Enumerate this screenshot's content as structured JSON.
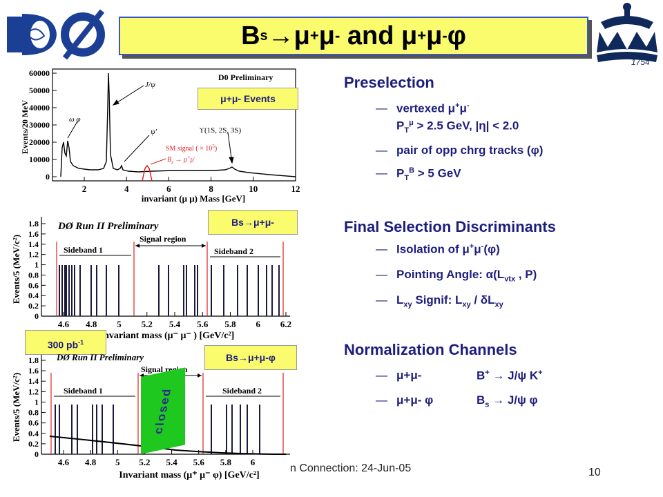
{
  "title": {
    "parts": [
      "B",
      "s",
      " → ",
      "μ",
      "+",
      "μ",
      "-",
      " and ",
      "μ",
      "+",
      "μ",
      "-",
      "φ"
    ]
  },
  "logo_left": {
    "text": "DØ"
  },
  "logo_right": {
    "year": "1754"
  },
  "preselection": {
    "heading": "Preselection",
    "items": [
      {
        "a": "vertexed μ",
        "a_sup": "+",
        "b": "μ",
        "b_sup": "-"
      },
      {
        "a": "P",
        "a_sub": "T",
        "a_sup": "μ",
        "b": " > 2.5 GeV, |η| < 2.0"
      },
      {
        "a": "pair of opp chrg tracks (φ)"
      },
      {
        "a": "P",
        "a_sub": "T",
        "a_sup": "B",
        "b": " > 5 GeV"
      }
    ]
  },
  "final_selection": {
    "heading": "Final Selection Discriminants",
    "items": [
      {
        "a": "Isolation of μ",
        "a_sup": "+",
        "b": "μ",
        "b_sup": "-",
        "c": "(φ)"
      },
      {
        "a": "Pointing Angle: α(L",
        "a_sub": "vtx",
        "b": " , P)"
      },
      {
        "a": "L",
        "a_sub": "xy",
        "b": " Signif: L",
        "b_sub": "xy",
        "c": " / δL",
        "c_sub": "xy"
      }
    ]
  },
  "normalization": {
    "heading": "Normalization Channels",
    "rows": [
      {
        "left": "μ+μ-",
        "right_a": "B",
        "right_sup": "+",
        "right_b": " → J/ψ K",
        "right_sup2": "+"
      },
      {
        "left": "μ+μ- φ",
        "right_a": "B",
        "right_sub": "s",
        "right_b": " → J/ψ  φ"
      }
    ]
  },
  "tags": {
    "events": "μ+μ- Events",
    "bs_mumu": "Bs→μ+μ-",
    "lumi": "300 pb",
    "lumi_sup": "-1",
    "bs_mumuphi": "Bs→μ+μ-φ",
    "closed": "closed"
  },
  "plot1": {
    "preliminary": "D0 Preliminary",
    "ylabel": "Events/20 MeV",
    "xlabel": "invariant (μ μ) Mass [GeV]",
    "yticks": [
      "0",
      "10000",
      "20000",
      "30000",
      "40000",
      "50000",
      "60000"
    ],
    "xticks": [
      "2",
      "4",
      "6",
      "8",
      "10",
      "12"
    ],
    "labels": {
      "jpsi": "J/ψ",
      "omega_phi": "ω φ",
      "psiprime": "ψ'",
      "upsilon": "ϒ(1S, 2S, 3S)",
      "sm_signal": "SM signal ( × 10",
      "sm_signal_sup": "5",
      "sm_signal_close": ")",
      "bs_label": "B",
      "bs_sub": "s",
      "bs_arrow": " → μ",
      "bs_tail": "μ"
    }
  },
  "plot2": {
    "preliminary": "DØ Run II Preliminary",
    "ylabel": "Events/5 (MeV/c²)",
    "xlabel": "Invariant mass (μ⁻ μ⁻ ) [GeV/c²]",
    "yticks": [
      "0",
      "0.2",
      "0.4",
      "0.6",
      "0.8",
      "1",
      "1.2",
      "1.4",
      "1.6",
      "1.8"
    ],
    "xticks": [
      "4.6",
      "4.8",
      "5",
      "5.2",
      "5.4",
      "5.6",
      "5.8",
      "6",
      "6.2"
    ],
    "sideband1": "Sideband 1",
    "sideband2": "Sideband 2",
    "signal_region": "Signal region"
  },
  "plot3": {
    "preliminary": "DØ Run II Preliminary",
    "ylabel": "Events/5 (MeV/c²)",
    "xlabel": "Invariant mass (μ⁺ μ⁻ φ) [GeV/c²]",
    "yticks": [
      "0",
      "0.2",
      "0.4",
      "0.6",
      "0.8",
      "1",
      "1.2",
      "1.4",
      "1.6",
      "1.8"
    ],
    "xticks": [
      "4.6",
      "4.8",
      "5",
      "5.2",
      "5.4",
      "5.6",
      "5.8",
      "6"
    ],
    "sideband1": "Sideband 1",
    "sideband2": "Sideband 2",
    "signal_region": "Signal region"
  },
  "footer": {
    "text": "n Connection: 24-Jun-05",
    "page": "10"
  },
  "colors": {
    "title_bg": "#fbfb6e",
    "title_border": "#3a57c9",
    "text_blue": "#1d1d7e",
    "closed_bg": "#1ec81e",
    "closed_text": "#2a2a8a",
    "signal_red": "#e02020",
    "logo_blue": "#1b3f94",
    "crown_navy": "#0f2a5a"
  }
}
